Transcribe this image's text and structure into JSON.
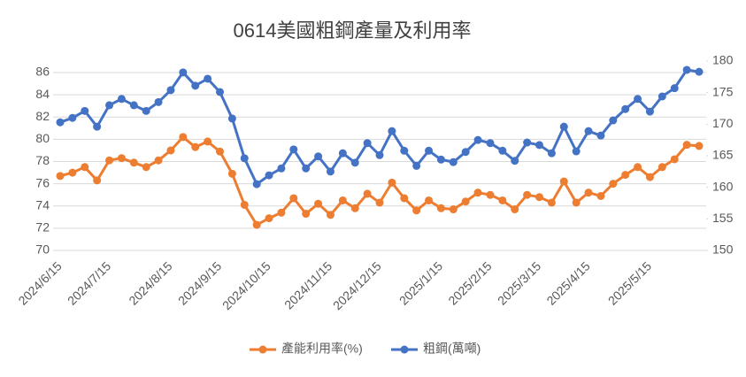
{
  "chart_data": {
    "type": "line",
    "title": "0614美國粗鋼產量及利用率",
    "categories": [
      "2024/6/15",
      null,
      null,
      null,
      "2024/7/15",
      null,
      null,
      null,
      null,
      "2024/8/15",
      null,
      null,
      null,
      "2024/9/15",
      null,
      null,
      null,
      "2024/10/15",
      null,
      null,
      null,
      null,
      "2024/11/15",
      null,
      null,
      null,
      "2024/12/15",
      null,
      null,
      null,
      null,
      "2025/1/15",
      null,
      null,
      null,
      "2025/2/15",
      null,
      null,
      null,
      "2025/3/15",
      null,
      null,
      null,
      "2025/4/15",
      null,
      null,
      null,
      null,
      "2025/5/15",
      null,
      null,
      null,
      null
    ],
    "series": [
      {
        "name": "產能利用率(%)",
        "color": "#ed7d31",
        "axis": "y",
        "values": [
          76.7,
          77.0,
          77.5,
          76.3,
          78.1,
          78.3,
          77.9,
          77.5,
          78.1,
          79.0,
          80.2,
          79.3,
          79.8,
          78.9,
          76.9,
          74.1,
          72.3,
          72.9,
          73.4,
          74.7,
          73.3,
          74.2,
          73.2,
          74.5,
          73.8,
          75.1,
          74.3,
          76.1,
          74.7,
          73.6,
          74.5,
          73.8,
          73.7,
          74.4,
          75.2,
          75.0,
          74.5,
          73.7,
          75.0,
          74.8,
          74.3,
          76.2,
          74.3,
          75.2,
          74.9,
          76.0,
          76.8,
          77.5,
          76.6,
          77.5,
          78.2,
          79.5,
          79.4
        ]
      },
      {
        "name": "粗鋼(萬噸)",
        "color": "#4472c4",
        "axis": "y2",
        "values": [
          170.3,
          171.0,
          172.1,
          169.6,
          173.0,
          174.0,
          173.0,
          172.1,
          173.5,
          175.4,
          178.2,
          176.1,
          177.2,
          175.1,
          170.9,
          164.6,
          160.5,
          161.9,
          163.0,
          166.0,
          163.0,
          164.9,
          162.5,
          165.4,
          163.9,
          167.0,
          165.1,
          168.9,
          165.8,
          163.4,
          165.8,
          164.4,
          164.0,
          165.6,
          167.5,
          167.0,
          165.8,
          164.2,
          167.1,
          166.7,
          165.4,
          169.6,
          165.7,
          168.9,
          168.2,
          170.6,
          172.4,
          174.0,
          172.0,
          174.4,
          175.7,
          178.6,
          178.3
        ]
      }
    ],
    "ylim": [
      70,
      86
    ],
    "yticks": [
      70,
      72,
      74,
      76,
      78,
      80,
      82,
      84,
      86
    ],
    "y2lim": [
      150,
      180
    ],
    "y2ticks": [
      150,
      155,
      160,
      165,
      170,
      175,
      180
    ],
    "grid": true,
    "legend": "bottom"
  }
}
